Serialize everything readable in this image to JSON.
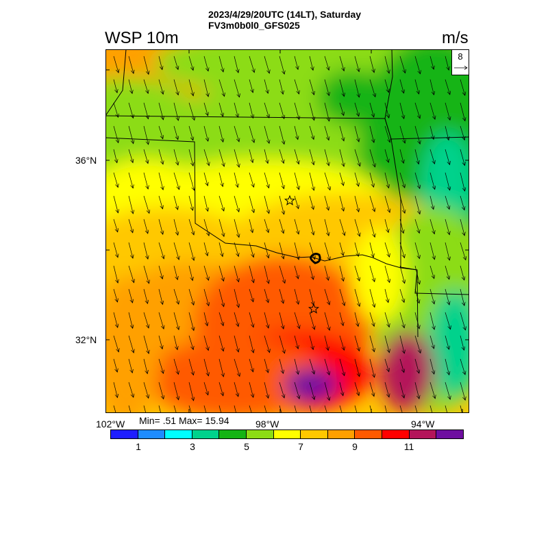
{
  "header": {
    "title_line1": "2023/4/29/20UTC (14LT), Saturday",
    "title_line2": "FV3m0b0l0_GFS025",
    "field_name": "WSP 10m",
    "units": "m/s"
  },
  "map": {
    "lat_labels": [
      "36°N",
      "32°N"
    ],
    "lon_labels": [
      "102°W",
      "98°W",
      "94°W"
    ],
    "reference_vector": "8",
    "stats": "Min= .51 Max= 15.94"
  },
  "colorbar": {
    "colors": [
      "#1e1eff",
      "#1e8cff",
      "#00ffff",
      "#00d28c",
      "#14b414",
      "#8cdc14",
      "#ffff00",
      "#ffc800",
      "#ffa000",
      "#ff5a00",
      "#ff0000",
      "#b4145a",
      "#6e0ea0"
    ],
    "labels": [
      "1",
      "3",
      "5",
      "7",
      "9",
      "11"
    ]
  },
  "legend_colors": {
    "green_dark": "#14b414",
    "green_light": "#8cdc14",
    "yellow": "#ffff00",
    "gold": "#ffc800",
    "orange": "#ffa000",
    "orange_red": "#ff5a00",
    "red": "#ff0000",
    "magenta": "#b4145a",
    "purple": "#6e0ea0",
    "teal": "#00d28c",
    "cyan": "#00ffff"
  }
}
